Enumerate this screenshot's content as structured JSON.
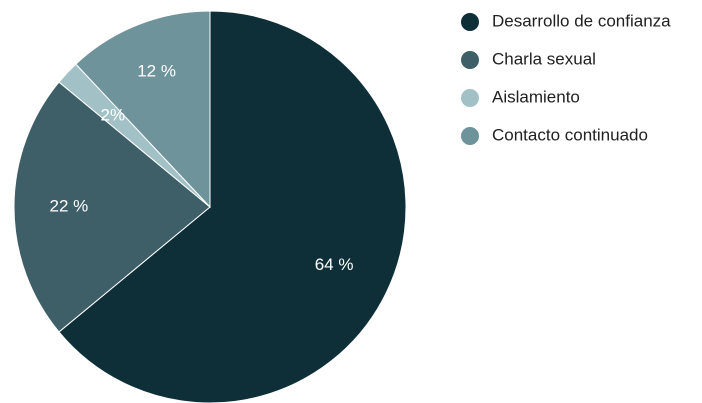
{
  "chart_data": {
    "type": "pie",
    "categories": [
      "Desarrollo de confianza",
      "Charla sexual",
      "Aislamiento",
      "Contacto continuado"
    ],
    "values": [
      64,
      22,
      2,
      12
    ],
    "value_labels": [
      "64 %",
      "22 %",
      "2%",
      "12 %"
    ],
    "colors": [
      "#0f2f38",
      "#3f5f68",
      "#a2c1c7",
      "#6f939b"
    ],
    "start_angle_deg": 0,
    "direction": "clockwise",
    "legend_position": "right",
    "legend": [
      "Desarrollo de confianza",
      "Charla sexual",
      "Aislamiento",
      "Contacto continuado"
    ]
  }
}
